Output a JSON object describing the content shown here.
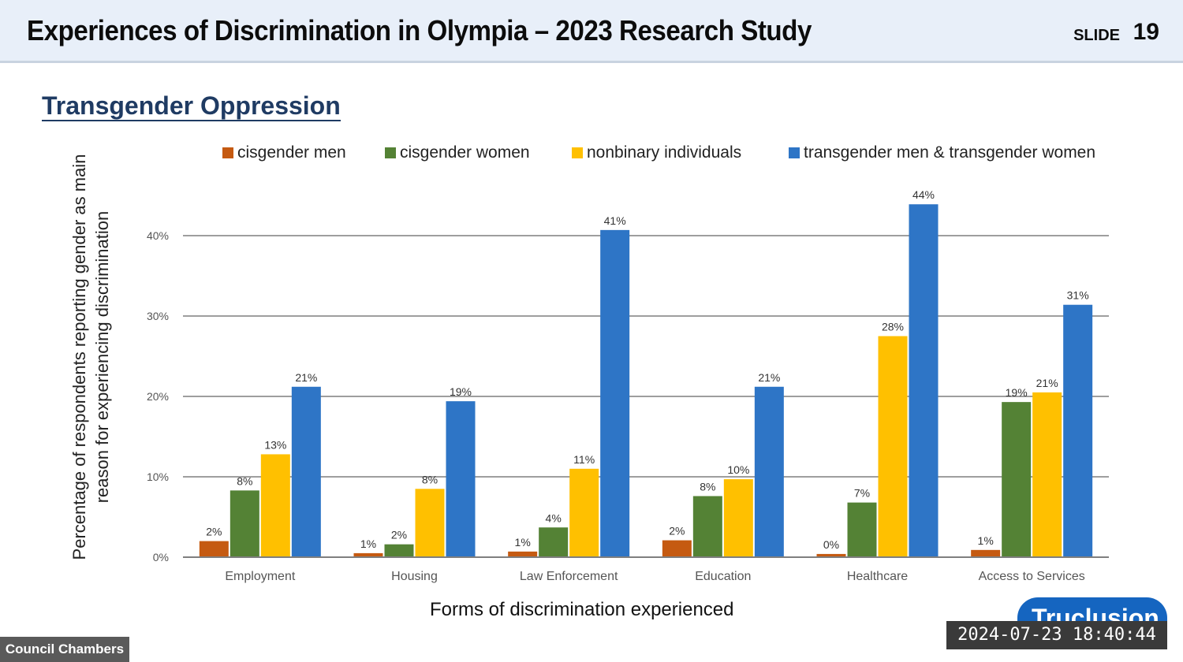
{
  "header": {
    "title": "Experiences of Discrimination in Olympia – 2023 Research Study",
    "slide_label": "SLIDE",
    "slide_number": "19"
  },
  "section_title": "Transgender Oppression",
  "chart_data": {
    "type": "bar",
    "title": "",
    "xlabel": "Forms of discrimination experienced",
    "ylabel": "Percentage of respondents reporting gender as main reason for experiencing discrimination",
    "ylim": [
      0,
      45
    ],
    "yticks": [
      0,
      10,
      20,
      30,
      40
    ],
    "ytick_labels": [
      "0%",
      "10%",
      "20%",
      "30%",
      "40%"
    ],
    "grid": true,
    "legend_position": "top",
    "categories": [
      "Employment",
      "Housing",
      "Law Enforcement",
      "Education",
      "Healthcare",
      "Access to Services"
    ],
    "series": [
      {
        "name": "cisgender men",
        "color": "#c55a11",
        "values": [
          2,
          0.5,
          0.7,
          2.1,
          0.4,
          0.9
        ],
        "labels": [
          "2%",
          "1%",
          "1%",
          "2%",
          "0%",
          "1%"
        ]
      },
      {
        "name": "cisgender women",
        "color": "#548235",
        "values": [
          8.3,
          1.6,
          3.7,
          7.6,
          6.8,
          19.3
        ],
        "labels": [
          "8%",
          "2%",
          "4%",
          "8%",
          "7%",
          "19%"
        ]
      },
      {
        "name": "nonbinary individuals",
        "color": "#ffc000",
        "values": [
          12.8,
          8.5,
          11,
          9.7,
          27.5,
          20.5
        ],
        "labels": [
          "13%",
          "8%",
          "11%",
          "10%",
          "28%",
          "21%"
        ]
      },
      {
        "name": "transgender men & transgender women",
        "color": "#2e75c6",
        "values": [
          21.2,
          19.4,
          40.7,
          21.2,
          43.9,
          31.4
        ],
        "labels": [
          "21%",
          "19%",
          "41%",
          "21%",
          "44%",
          "31%"
        ]
      }
    ]
  },
  "overlays": {
    "logo": "Truclusion",
    "timestamp": "2024-07-23  18:40:44",
    "room": "Council Chambers"
  }
}
